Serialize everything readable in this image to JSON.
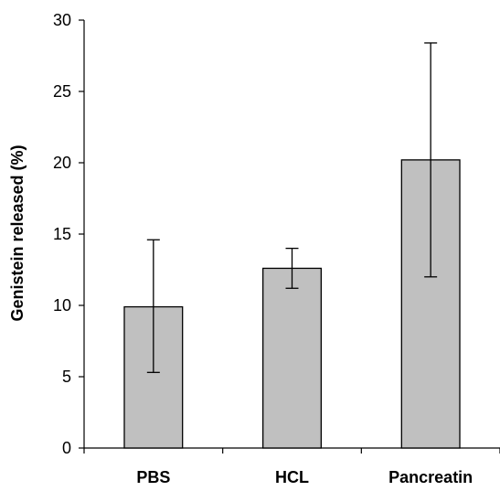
{
  "chart_data": {
    "type": "bar",
    "title": "",
    "xlabel": "",
    "ylabel": "Genistein released (%)",
    "categories": [
      "PBS",
      "HCL",
      "Pancreatin"
    ],
    "values": [
      9.9,
      12.6,
      20.2
    ],
    "error_bars": {
      "lower": [
        5.3,
        11.2,
        12.0
      ],
      "upper": [
        14.6,
        14.0,
        28.4
      ]
    },
    "ylim": [
      0,
      30
    ],
    "yticks": [
      "0",
      "5",
      "10",
      "15",
      "20",
      "25",
      "30"
    ],
    "grid": false,
    "legend": "none",
    "colors": {
      "bar_fill": "#c0c0c0",
      "bar_stroke": "#000000",
      "axis": "#000000"
    }
  }
}
